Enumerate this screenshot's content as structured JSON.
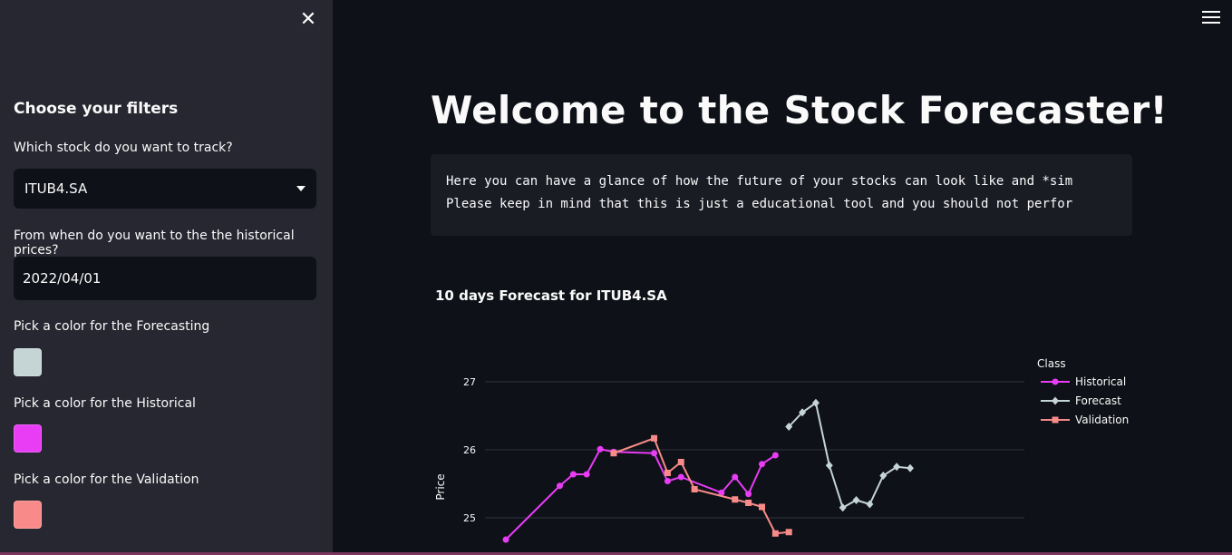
{
  "sidebar": {
    "close_label": "✕",
    "title": "Choose your filters",
    "stock_label": "Which stock do you want to track?",
    "stock_value": "ITUB4.SA",
    "date_label": "From when do you want to the the historical prices?",
    "date_value": "2022/04/01",
    "forecast_color_label": "Pick a color for the Forecasting",
    "forecast_color": "#C5D4D4",
    "historical_color_label": "Pick a color for the Historical",
    "historical_color": "#E83CF5",
    "validation_color_label": "Pick a color for the Validation",
    "validation_color": "#F88B89"
  },
  "header": {
    "menu_icon": "hamburger-icon"
  },
  "main": {
    "title": "Welcome to the Stock Forecaster!",
    "code_line1": "Here you can have a glance of how the future of your stocks can look like and *sim",
    "code_line2": "Please keep in mind that this is just a educational tool and you should not perfor"
  },
  "chart_data": {
    "type": "line",
    "title": "10 days Forecast for ITUB4.SA",
    "ylabel": "Price",
    "xlabel": "",
    "ylim": [
      24.4,
      27.3
    ],
    "yticks": [
      25,
      26,
      27
    ],
    "grid": true,
    "legend_title": "Class",
    "legend_placement": "top-right",
    "series": [
      {
        "name": "Historical",
        "color": "#E83CF5",
        "marker": "circle",
        "x": [
          0,
          4,
          5,
          6,
          7,
          8,
          11,
          12,
          13,
          16,
          17,
          18,
          19,
          20
        ],
        "y": [
          24.68,
          25.47,
          25.64,
          25.64,
          26.01,
          25.97,
          25.95,
          25.54,
          25.6,
          25.37,
          25.6,
          25.35,
          25.79,
          25.92
        ]
      },
      {
        "name": "Forecast",
        "color": "#C5D4D4",
        "marker": "diamond",
        "x": [
          21,
          22,
          23,
          24,
          25,
          26,
          27,
          28,
          29,
          30
        ],
        "y": [
          26.34,
          26.55,
          26.69,
          25.77,
          25.15,
          25.26,
          25.2,
          25.62,
          25.75,
          25.73
        ]
      },
      {
        "name": "Validation",
        "color": "#F88B89",
        "marker": "square",
        "x": [
          8,
          11,
          12,
          13,
          14,
          17,
          18,
          19,
          20,
          21
        ],
        "y": [
          25.95,
          26.17,
          25.66,
          25.82,
          25.42,
          25.27,
          25.22,
          25.16,
          24.77,
          24.79
        ]
      }
    ]
  }
}
